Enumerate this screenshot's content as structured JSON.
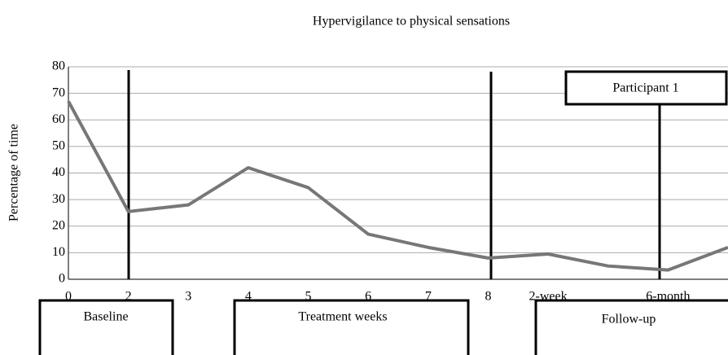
{
  "chart_data": {
    "type": "line",
    "title": "Hypervigilance to physical sensations",
    "y_label": "Percentage of time",
    "categories": [
      "0",
      "2",
      "3",
      "4",
      "5",
      "6",
      "7",
      "8",
      "2-week",
      null,
      "6-month",
      null
    ],
    "series": [
      {
        "name": "Participant 1",
        "color": "#777777",
        "values": [
          67,
          25.5,
          28,
          42,
          34.5,
          17,
          12,
          8,
          9.5,
          5,
          3.5,
          12
        ]
      }
    ],
    "ylim": [
      0,
      80
    ],
    "yticks": [
      0,
      10,
      20,
      30,
      40,
      50,
      60,
      70,
      80
    ],
    "grid": true,
    "phases": [
      "Baseline",
      "Treatment weeks",
      "Follow-up"
    ]
  }
}
